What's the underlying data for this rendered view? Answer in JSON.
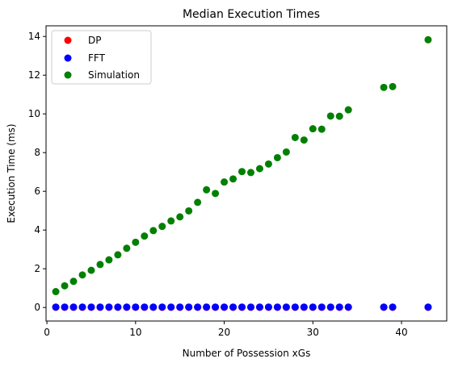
{
  "chart_data": {
    "type": "scatter",
    "title": "Median Execution Times",
    "xlabel": "Number of Possession xGs",
    "ylabel": "Execution Time (ms)",
    "xlim": [
      -0.1,
      45.1
    ],
    "ylim": [
      -0.7,
      14.55
    ],
    "xticks": [
      0,
      10,
      20,
      30,
      40
    ],
    "yticks": [
      0,
      2,
      4,
      6,
      8,
      10,
      12,
      14
    ],
    "grid": false,
    "legend_position": "top-left",
    "series": [
      {
        "name": "DP",
        "color": "#ff0000",
        "points": [
          [
            1,
            0.01
          ],
          [
            2,
            0.01
          ],
          [
            3,
            0.01
          ],
          [
            4,
            0.01
          ],
          [
            5,
            0.01
          ],
          [
            6,
            0.01
          ],
          [
            7,
            0.01
          ],
          [
            8,
            0.01
          ],
          [
            9,
            0.01
          ],
          [
            10,
            0.01
          ],
          [
            11,
            0.01
          ],
          [
            12,
            0.01
          ],
          [
            13,
            0.01
          ],
          [
            14,
            0.01
          ],
          [
            15,
            0.01
          ],
          [
            16,
            0.01
          ],
          [
            17,
            0.01
          ],
          [
            18,
            0.01
          ],
          [
            19,
            0.01
          ],
          [
            20,
            0.01
          ],
          [
            21,
            0.01
          ],
          [
            22,
            0.01
          ],
          [
            23,
            0.01
          ],
          [
            24,
            0.01
          ],
          [
            25,
            0.01
          ],
          [
            26,
            0.01
          ],
          [
            27,
            0.01
          ],
          [
            28,
            0.01
          ],
          [
            29,
            0.01
          ],
          [
            30,
            0.01
          ],
          [
            31,
            0.01
          ],
          [
            32,
            0.01
          ],
          [
            33,
            0.01
          ],
          [
            34,
            0.01
          ],
          [
            38,
            0.01
          ],
          [
            39,
            0.01
          ],
          [
            43,
            0.01
          ]
        ]
      },
      {
        "name": "FFT",
        "color": "#0000ff",
        "points": [
          [
            1,
            0.02
          ],
          [
            2,
            0.02
          ],
          [
            3,
            0.02
          ],
          [
            4,
            0.02
          ],
          [
            5,
            0.02
          ],
          [
            6,
            0.02
          ],
          [
            7,
            0.02
          ],
          [
            8,
            0.02
          ],
          [
            9,
            0.02
          ],
          [
            10,
            0.02
          ],
          [
            11,
            0.02
          ],
          [
            12,
            0.02
          ],
          [
            13,
            0.02
          ],
          [
            14,
            0.02
          ],
          [
            15,
            0.02
          ],
          [
            16,
            0.02
          ],
          [
            17,
            0.02
          ],
          [
            18,
            0.02
          ],
          [
            19,
            0.02
          ],
          [
            20,
            0.02
          ],
          [
            21,
            0.02
          ],
          [
            22,
            0.02
          ],
          [
            23,
            0.02
          ],
          [
            24,
            0.02
          ],
          [
            25,
            0.02
          ],
          [
            26,
            0.02
          ],
          [
            27,
            0.02
          ],
          [
            28,
            0.02
          ],
          [
            29,
            0.02
          ],
          [
            30,
            0.02
          ],
          [
            31,
            0.02
          ],
          [
            32,
            0.02
          ],
          [
            33,
            0.02
          ],
          [
            34,
            0.02
          ],
          [
            38,
            0.02
          ],
          [
            39,
            0.02
          ],
          [
            43,
            0.02
          ]
        ]
      },
      {
        "name": "Simulation",
        "color": "#008000",
        "points": [
          [
            1,
            0.82
          ],
          [
            2,
            1.12
          ],
          [
            3,
            1.35
          ],
          [
            4,
            1.68
          ],
          [
            5,
            1.92
          ],
          [
            6,
            2.22
          ],
          [
            7,
            2.46
          ],
          [
            8,
            2.72
          ],
          [
            9,
            3.06
          ],
          [
            10,
            3.37
          ],
          [
            11,
            3.69
          ],
          [
            12,
            3.97
          ],
          [
            13,
            4.19
          ],
          [
            14,
            4.47
          ],
          [
            15,
            4.68
          ],
          [
            16,
            4.99
          ],
          [
            17,
            5.43
          ],
          [
            18,
            6.08
          ],
          [
            19,
            5.89
          ],
          [
            20,
            6.48
          ],
          [
            21,
            6.64
          ],
          [
            22,
            7.02
          ],
          [
            23,
            6.97
          ],
          [
            24,
            7.17
          ],
          [
            25,
            7.41
          ],
          [
            26,
            7.74
          ],
          [
            27,
            8.03
          ],
          [
            28,
            8.78
          ],
          [
            29,
            8.65
          ],
          [
            30,
            9.23
          ],
          [
            31,
            9.21
          ],
          [
            32,
            9.89
          ],
          [
            33,
            9.88
          ],
          [
            34,
            10.21
          ],
          [
            38,
            11.37
          ],
          [
            39,
            11.41
          ],
          [
            43,
            13.83
          ]
        ]
      }
    ]
  }
}
